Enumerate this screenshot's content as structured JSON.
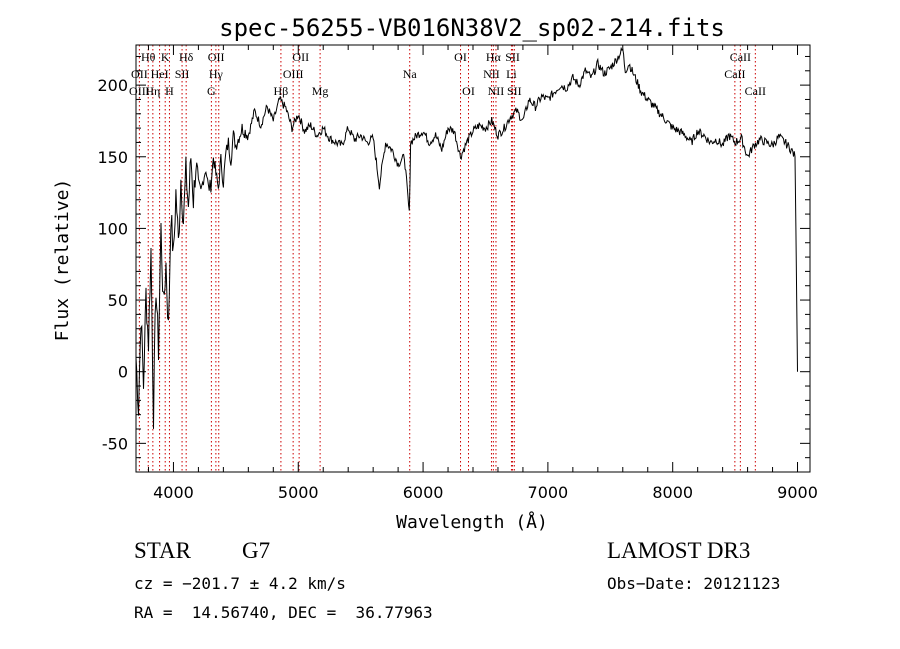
{
  "chart_data": {
    "type": "line",
    "title": "spec-56255-VB016N38V2_sp02-214.fits",
    "xlabel": "Wavelength (Å)",
    "ylabel": "Flux (relative)",
    "xlim": [
      3700,
      9100
    ],
    "ylim": [
      -70,
      228
    ],
    "x_ticks": [
      4000,
      5000,
      6000,
      7000,
      8000,
      9000
    ],
    "y_ticks": [
      -50,
      0,
      50,
      100,
      150,
      200
    ],
    "grid": false,
    "series": [
      {
        "name": "flux",
        "x": [
          3700,
          3720,
          3740,
          3760,
          3780,
          3800,
          3820,
          3840,
          3860,
          3880,
          3900,
          3920,
          3940,
          3960,
          3980,
          4000,
          4020,
          4040,
          4060,
          4080,
          4100,
          4120,
          4140,
          4160,
          4180,
          4200,
          4220,
          4240,
          4260,
          4280,
          4300,
          4320,
          4340,
          4360,
          4380,
          4400,
          4420,
          4440,
          4460,
          4480,
          4500,
          4550,
          4600,
          4650,
          4700,
          4750,
          4800,
          4850,
          4900,
          4950,
          5000,
          5050,
          5100,
          5150,
          5200,
          5250,
          5300,
          5350,
          5400,
          5450,
          5500,
          5550,
          5600,
          5650,
          5700,
          5750,
          5800,
          5850,
          5890,
          5900,
          5950,
          6000,
          6050,
          6100,
          6150,
          6200,
          6250,
          6300,
          6350,
          6400,
          6450,
          6500,
          6550,
          6600,
          6650,
          6700,
          6750,
          6800,
          6850,
          6900,
          6950,
          7000,
          7050,
          7100,
          7150,
          7200,
          7250,
          7300,
          7350,
          7400,
          7450,
          7500,
          7550,
          7600,
          7620,
          7650,
          7700,
          7750,
          7800,
          7850,
          7900,
          7950,
          8000,
          8050,
          8100,
          8150,
          8200,
          8250,
          8300,
          8350,
          8400,
          8450,
          8500,
          8550,
          8600,
          8650,
          8700,
          8750,
          8800,
          8850,
          8900,
          8950,
          8980,
          9000
        ],
        "values": [
          10,
          -25,
          40,
          -10,
          55,
          20,
          85,
          -30,
          60,
          15,
          100,
          45,
          75,
          30,
          110,
          80,
          125,
          90,
          135,
          105,
          140,
          115,
          150,
          120,
          145,
          130,
          125,
          135,
          142,
          128,
          130,
          150,
          138,
          128,
          148,
          132,
          152,
          160,
          148,
          165,
          158,
          170,
          165,
          182,
          172,
          185,
          175,
          190,
          184,
          170,
          180,
          168,
          172,
          165,
          170,
          163,
          160,
          158,
          170,
          162,
          165,
          160,
          163,
          130,
          160,
          155,
          145,
          150,
          110,
          160,
          165,
          168,
          160,
          165,
          155,
          170,
          168,
          150,
          160,
          168,
          172,
          170,
          175,
          165,
          170,
          178,
          182,
          175,
          190,
          185,
          192,
          190,
          195,
          200,
          198,
          205,
          200,
          210,
          205,
          215,
          208,
          212,
          218,
          225,
          210,
          215,
          205,
          195,
          190,
          185,
          180,
          175,
          170,
          168,
          165,
          160,
          168,
          165,
          160,
          162,
          158,
          165,
          160,
          163,
          150,
          158,
          162,
          160,
          158,
          164,
          160,
          155,
          150,
          0
        ]
      }
    ],
    "line_labels": [
      {
        "label": "Hθ",
        "x": 3798,
        "row": 1
      },
      {
        "label": "K",
        "x": 3934,
        "row": 1
      },
      {
        "label": "Hδ",
        "x": 4102,
        "row": 1
      },
      {
        "label": "OII",
        "x": 4342,
        "row": 1
      },
      {
        "label": "OII",
        "x": 5020,
        "row": 1
      },
      {
        "label": "OI",
        "x": 6300,
        "row": 1
      },
      {
        "label": "Hα",
        "x": 6563,
        "row": 1
      },
      {
        "label": "SII",
        "x": 6717,
        "row": 1
      },
      {
        "label": "CaII",
        "x": 8542,
        "row": 1
      },
      {
        "label": "OII",
        "x": 3727,
        "row": 2
      },
      {
        "label": "HeI",
        "x": 3889,
        "row": 2
      },
      {
        "label": "SII",
        "x": 4069,
        "row": 2
      },
      {
        "label": "Hγ",
        "x": 4340,
        "row": 2
      },
      {
        "label": "OIII",
        "x": 4959,
        "row": 2
      },
      {
        "label": "Na",
        "x": 5893,
        "row": 2
      },
      {
        "label": "NII",
        "x": 6548,
        "row": 2
      },
      {
        "label": "Li",
        "x": 6708,
        "row": 2
      },
      {
        "label": "CaII",
        "x": 8498,
        "row": 2
      },
      {
        "label": "OIII",
        "x": 3727,
        "row": 3
      },
      {
        "label": "Hη",
        "x": 3835,
        "row": 3
      },
      {
        "label": "H",
        "x": 3968,
        "row": 3
      },
      {
        "label": "G",
        "x": 4304,
        "row": 3
      },
      {
        "label": "Hβ",
        "x": 4861,
        "row": 3
      },
      {
        "label": "Mg",
        "x": 5175,
        "row": 3
      },
      {
        "label": "OI",
        "x": 6364,
        "row": 3
      },
      {
        "label": "NII",
        "x": 6584,
        "row": 3
      },
      {
        "label": "SII",
        "x": 6731,
        "row": 3
      },
      {
        "label": "CaII",
        "x": 8662,
        "row": 3
      }
    ],
    "line_markers": [
      3727,
      3798,
      3835,
      3889,
      3934,
      3968,
      4069,
      4102,
      4304,
      4340,
      4363,
      4861,
      4959,
      5007,
      5175,
      5893,
      6300,
      6364,
      6548,
      6563,
      6584,
      6708,
      6717,
      6731,
      8498,
      8542,
      8662
    ]
  },
  "info": {
    "class_label": "STAR",
    "subclass": "G7",
    "redshift": "cz = −201.7 ± 4.2 km/s",
    "coords": "RA =  14.56740, DEC =  36.77963",
    "survey": "LAMOST DR3",
    "obs_date": "Obs−Date: 20121123"
  },
  "colors": {
    "spectrum": "#000000",
    "marker": "#cc0000",
    "axis": "#000000"
  }
}
